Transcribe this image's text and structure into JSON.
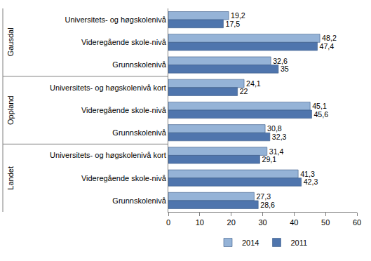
{
  "chart_data": {
    "type": "bar",
    "orientation": "horizontal",
    "categories": [
      "Universitets- og høgskolenivå",
      "Videregående skole-nivå",
      "Grunnskolenivå",
      "Universitets- og høgskolenivå kort",
      "Videregående skole-nivå",
      "Grunnskolenivå",
      "Universitets- og høgskolenivå kort",
      "Videregående skole-nivå",
      "Grunnskolenivå"
    ],
    "groups": [
      "Gausdal",
      "Gausdal",
      "Gausdal",
      "Oppland",
      "Oppland",
      "Oppland",
      "Landet",
      "Landet",
      "Landet"
    ],
    "series": [
      {
        "name": "2014",
        "color": "#95b3d7",
        "values": [
          19.2,
          48.2,
          32.6,
          24.1,
          45.1,
          30.8,
          31.4,
          41.3,
          27.3
        ],
        "value_labels": [
          "19,2",
          "48,2",
          "32,6",
          "24,1",
          "45,1",
          "30,8",
          "31,4",
          "41,3",
          "27,3"
        ]
      },
      {
        "name": "2011",
        "color": "#4f75ad",
        "values": [
          17.5,
          47.4,
          35,
          22,
          45.6,
          32.3,
          29.1,
          42.3,
          28.6
        ],
        "value_labels": [
          "17,5",
          "47,4",
          "35",
          "22",
          "45,6",
          "32,3",
          "29,1",
          "42,3",
          "28,6"
        ]
      }
    ],
    "xlim": [
      0,
      60
    ],
    "xticks": [
      0,
      10,
      20,
      30,
      40,
      50,
      60
    ],
    "data_labels": true,
    "grid": false,
    "legend": "bottom"
  }
}
